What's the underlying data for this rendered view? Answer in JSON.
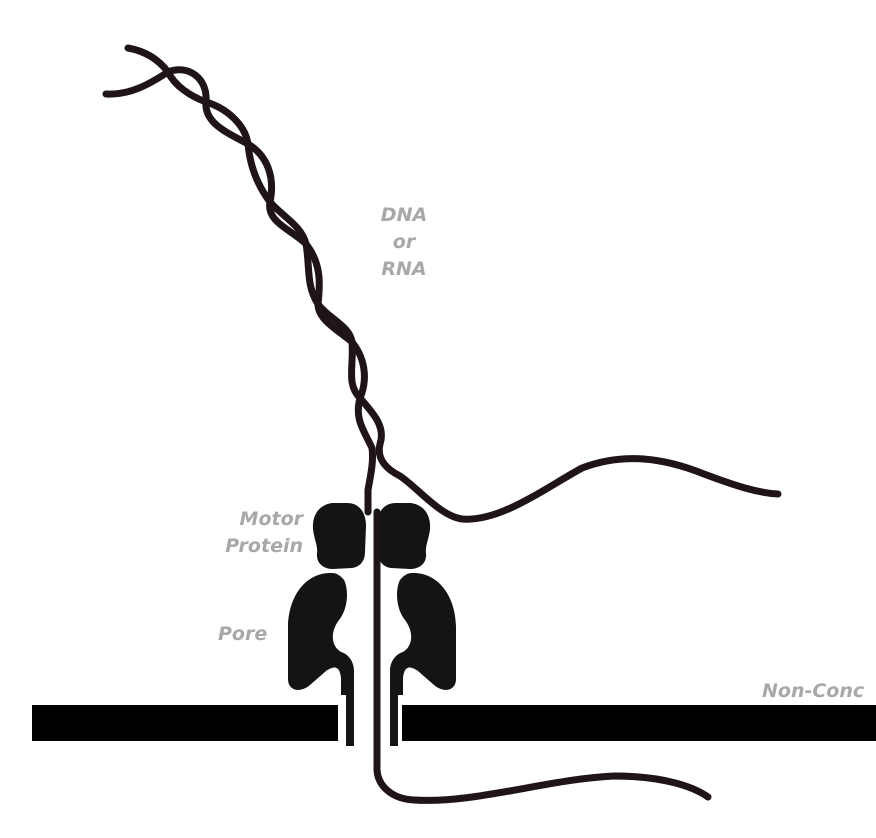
{
  "labels": {
    "strand": [
      "DNA",
      "or",
      "RNA"
    ],
    "motor": [
      "Motor",
      "Protein"
    ],
    "pore": "Pore",
    "membrane": "Non-Conc"
  },
  "colors": {
    "strand": "#1f1416",
    "protein": "#141414",
    "membrane": "#000000",
    "label": "#a8a8a8"
  }
}
